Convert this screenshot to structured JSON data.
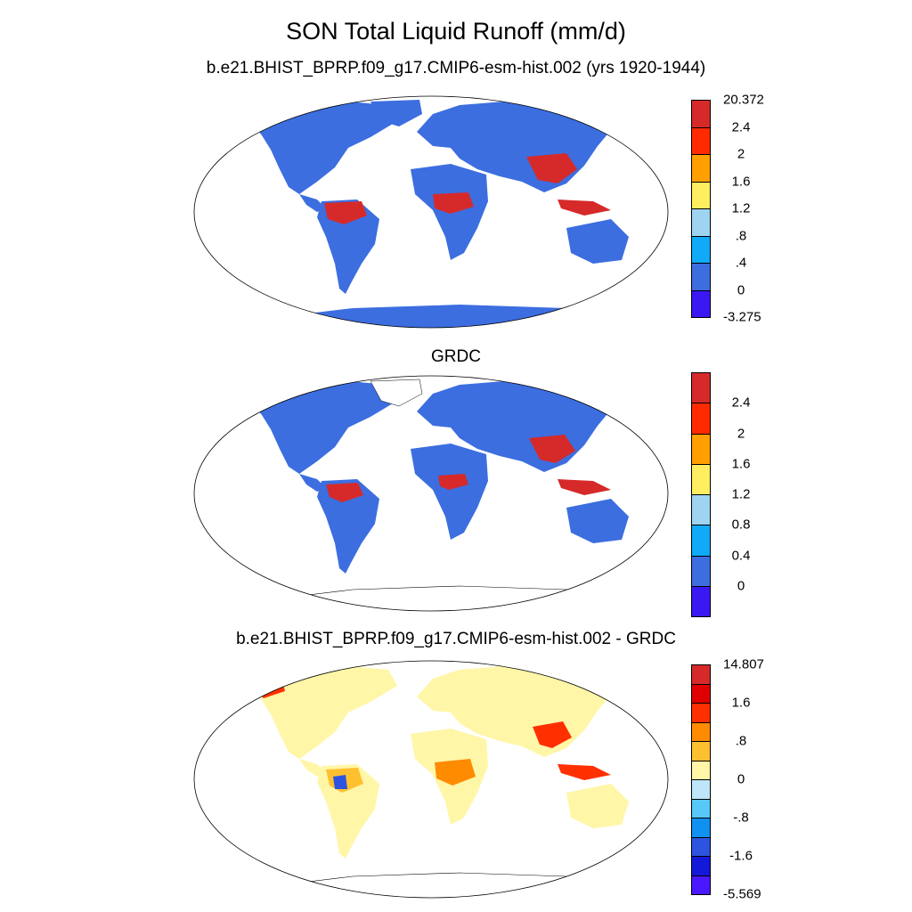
{
  "title": "SON Total Liquid Runoff (mm/d)",
  "panels": [
    {
      "subtitle": "b.e21.BHIST_BPRP.f09_g17.CMIP6-esm-hist.002 (yrs 1920-1944)",
      "colorbar": {
        "labels": [
          "20.372",
          "2.4",
          "2",
          "1.6",
          "1.2",
          ".8",
          ".4",
          "0",
          "-3.275"
        ],
        "colors": [
          "#d62a2a",
          "#ff2a00",
          "#ffa000",
          "#ffee60",
          "#9ed4f0",
          "#10aaf8",
          "#3c6ee0",
          "#3a18f4"
        ]
      }
    },
    {
      "subtitle": "GRDC",
      "colorbar": {
        "labels": [
          "2.4",
          "2",
          "1.6",
          "1.2",
          "0.8",
          "0.4",
          "0"
        ],
        "colors": [
          "#d62a2a",
          "#ff2a00",
          "#ffa000",
          "#ffee60",
          "#9ed4f0",
          "#10aaf8",
          "#3c6ee0",
          "#3a18f4"
        ]
      }
    },
    {
      "subtitle": "b.e21.BHIST_BPRP.f09_g17.CMIP6-esm-hist.002 - GRDC",
      "colorbar": {
        "labels": [
          "14.807",
          "1.6",
          ".8",
          "0",
          "-.8",
          "-1.6",
          "-5.569"
        ],
        "colors": [
          "#d62a2a",
          "#e00000",
          "#ff3000",
          "#ff8c00",
          "#ffc030",
          "#fff6a8",
          "#bfe6f8",
          "#58c8f8",
          "#1090f0",
          "#2c54e0",
          "#1418d8",
          "#4a18ff"
        ]
      }
    }
  ]
}
